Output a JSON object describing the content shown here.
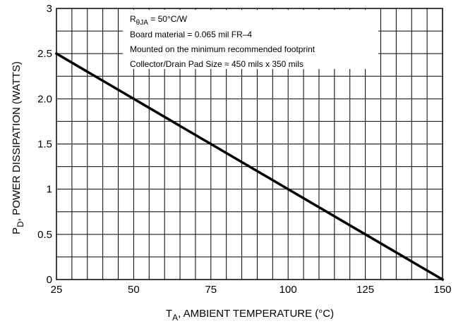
{
  "chart_data": {
    "type": "line",
    "xlim": [
      25,
      150
    ],
    "ylim": [
      0,
      3
    ],
    "x_ticks": [
      25,
      50,
      75,
      100,
      125,
      150
    ],
    "x_tick_labels": [
      "25",
      "50",
      "75",
      "100",
      "125",
      "150"
    ],
    "y_ticks": [
      0,
      0.5,
      1,
      1.5,
      2,
      2.5,
      3
    ],
    "y_tick_labels": [
      "0",
      "0.5",
      "1",
      "1.5",
      "2.0",
      "2.5",
      "3"
    ],
    "x_minor_step": 5,
    "y_minor_step": 0.25,
    "grid": true,
    "xlabel": {
      "main": "T",
      "sub": "A",
      "rest": ", AMBIENT TEMPERATURE (°C)"
    },
    "ylabel": {
      "main": "P",
      "sub": "D",
      "rest": ", POWER DISSIPATION (WATTS)"
    },
    "series": [
      {
        "x": [
          25,
          150
        ],
        "y": [
          2.5,
          0
        ],
        "color": "#000000"
      }
    ],
    "annotation": {
      "line1": {
        "main": "R",
        "sub": "θJA",
        "rest": " = 50°C/W"
      },
      "line2": "Board material = 0.065 mil FR–4",
      "line3": "Mounted on the minimum recommended footprint",
      "line4": "Collector/Drain Pad Size ≈ 450 mils x 350 mils"
    }
  }
}
